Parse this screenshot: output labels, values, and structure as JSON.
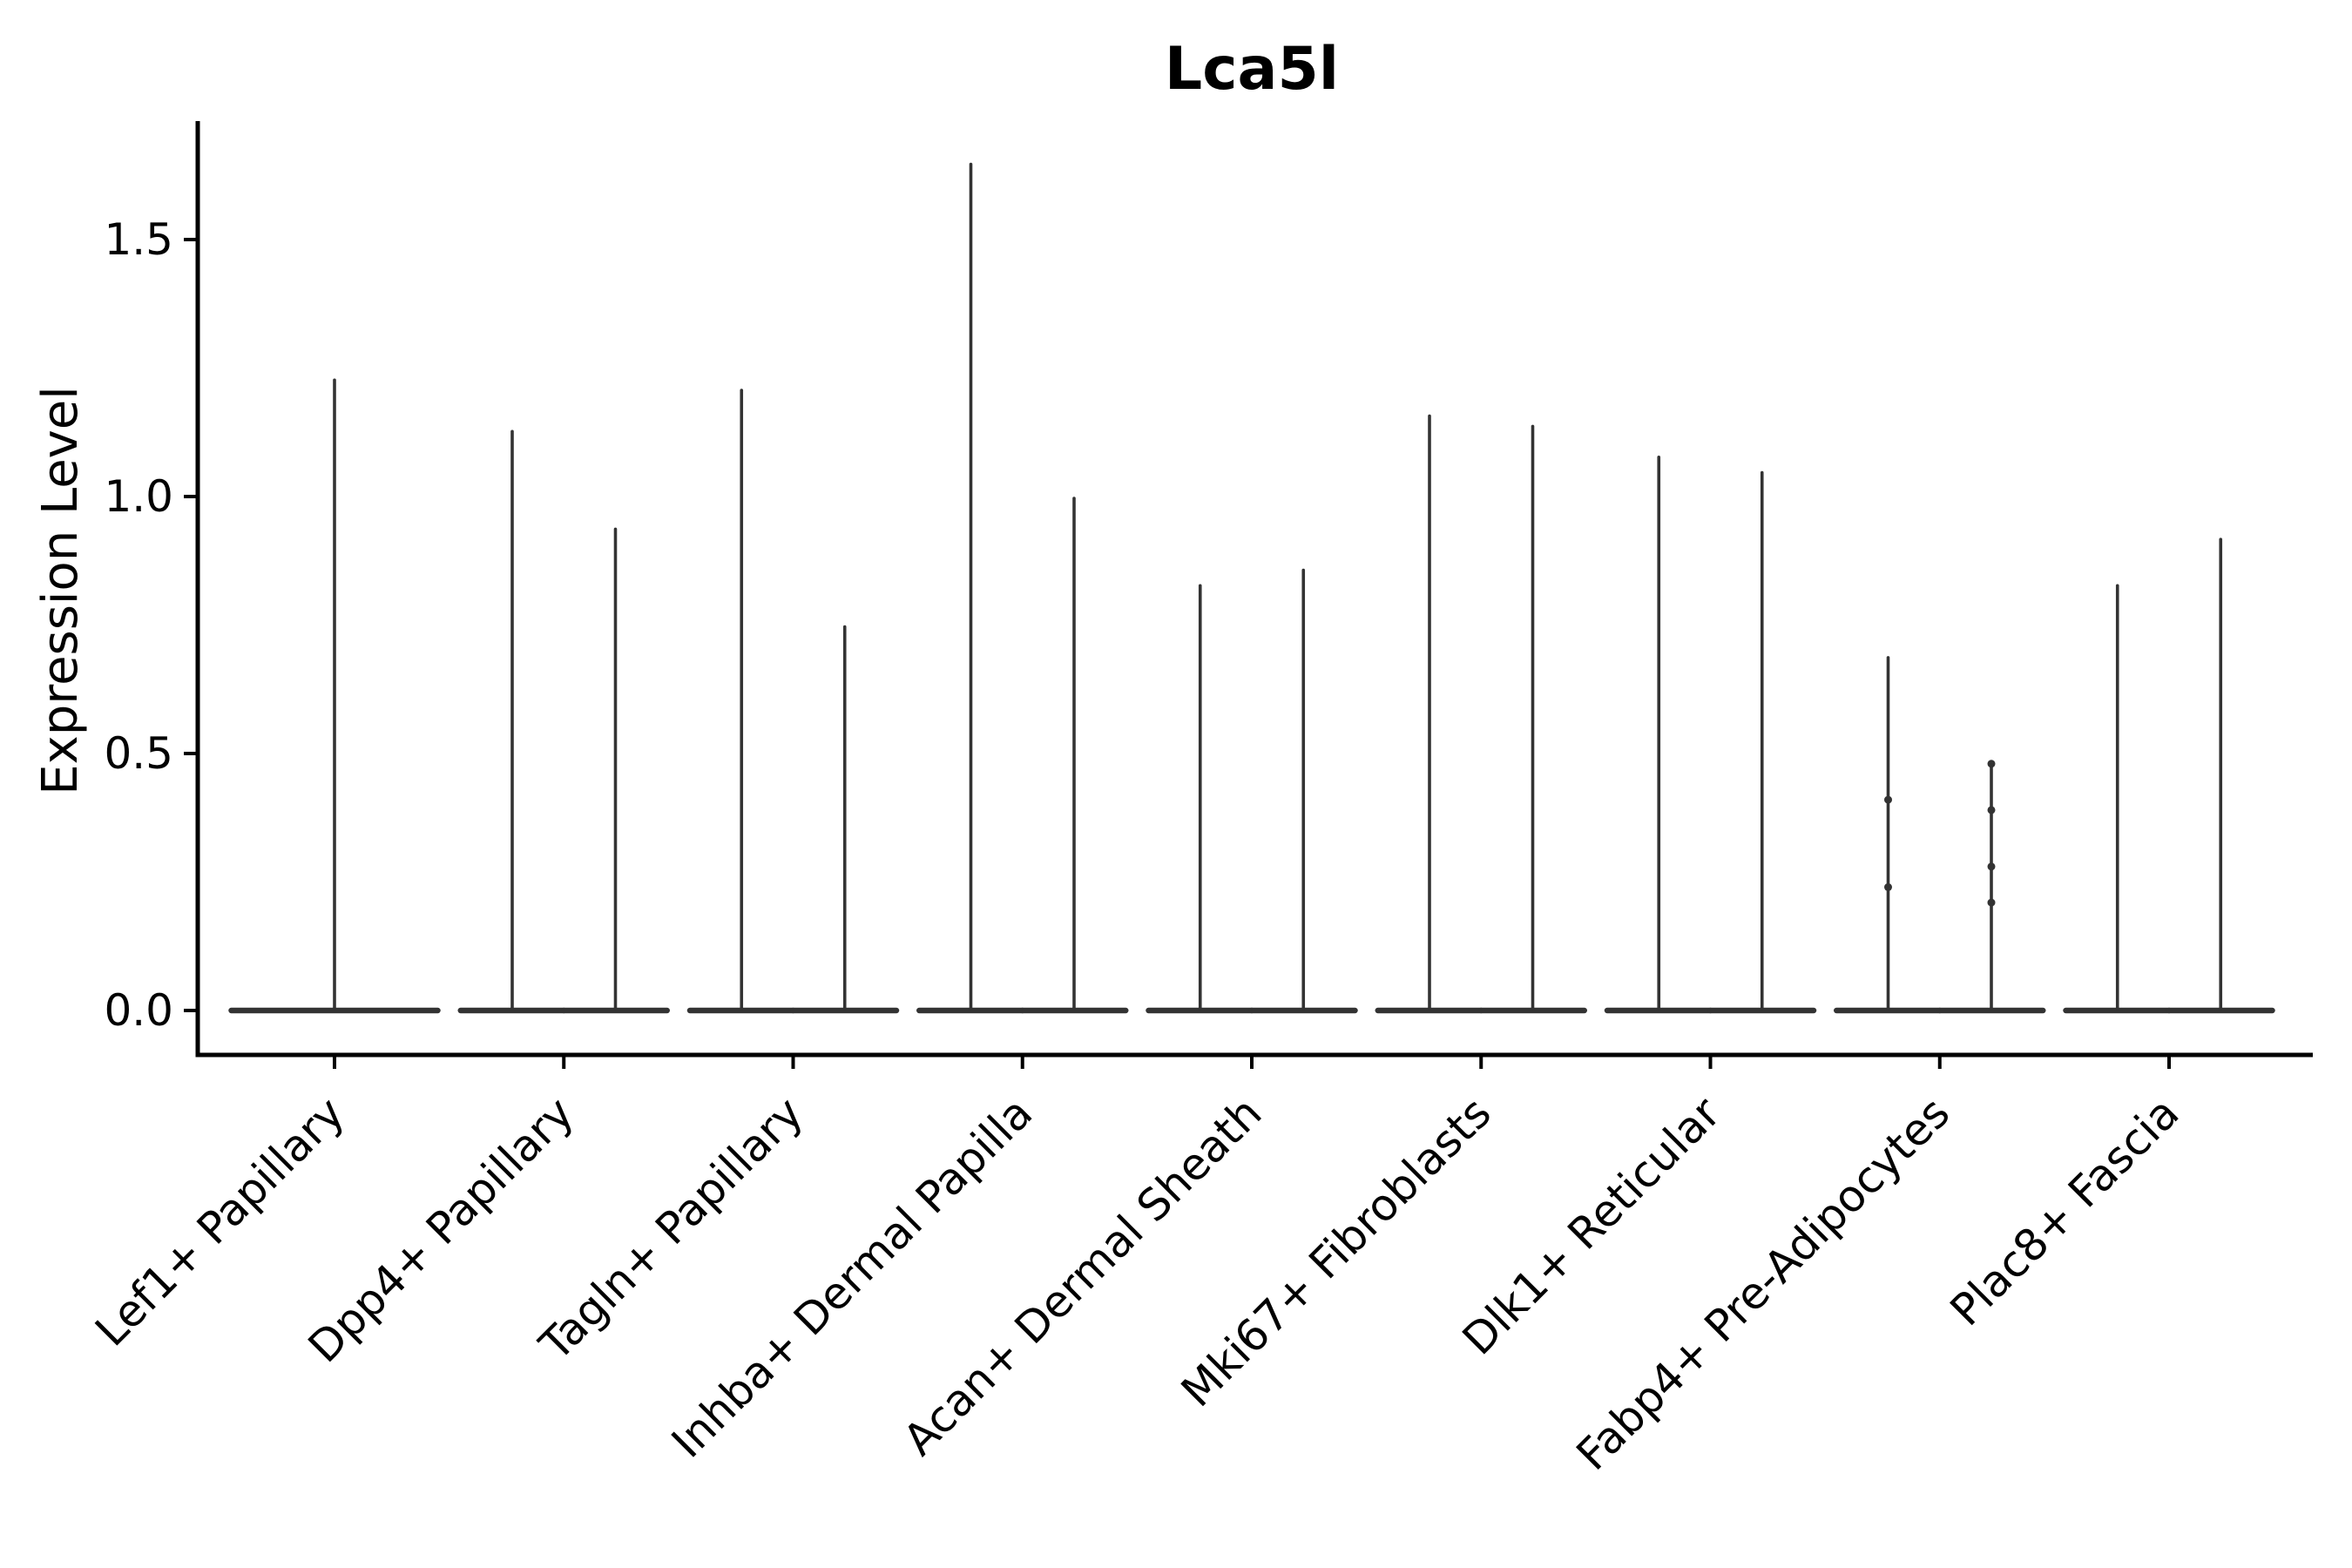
{
  "chart_data": {
    "type": "violin",
    "title": "Lca5l",
    "ylabel": "Expression Level",
    "xlabel": "",
    "grid": false,
    "legend": "none",
    "ylim": [
      -0.09,
      1.73
    ],
    "yticks": [
      {
        "label": "0.0",
        "value": 0.0
      },
      {
        "label": "0.5",
        "value": 0.5
      },
      {
        "label": "1.0",
        "value": 1.0
      },
      {
        "label": "1.5",
        "value": 1.5
      }
    ],
    "categories": [
      "Lef1+ Papillary",
      "Dpp4+ Papillary",
      "Tagln+ Papillary",
      "Inhba+ Dermal Papilla",
      "Acan+ Dermal Sheath",
      "Mki67+ Fibroblasts",
      "Dlk1+ Reticular",
      "Fabp4+ Pre-Adipocytes",
      "Plac8+ Fascia"
    ],
    "groups": [
      {
        "label": "Lef1+ Papillary",
        "violins": [
          {
            "max": 1.23,
            "points": []
          }
        ]
      },
      {
        "label": "Dpp4+ Papillary",
        "violins": [
          {
            "max": 1.13,
            "points": []
          },
          {
            "max": 0.94,
            "points": []
          }
        ]
      },
      {
        "label": "Tagln+ Papillary",
        "violins": [
          {
            "max": 1.21,
            "points": []
          },
          {
            "max": 0.75,
            "points": []
          }
        ]
      },
      {
        "label": "Inhba+ Dermal Papilla",
        "violins": [
          {
            "max": 1.65,
            "points": []
          },
          {
            "max": 1.0,
            "points": []
          }
        ]
      },
      {
        "label": "Acan+ Dermal Sheath",
        "violins": [
          {
            "max": 0.83,
            "points": []
          },
          {
            "max": 0.86,
            "points": []
          }
        ]
      },
      {
        "label": "Mki67+ Fibroblasts",
        "violins": [
          {
            "max": 1.16,
            "points": []
          },
          {
            "max": 1.14,
            "points": []
          }
        ]
      },
      {
        "label": "Dlk1+ Reticular",
        "violins": [
          {
            "max": 1.08,
            "points": []
          },
          {
            "max": 1.05,
            "points": []
          }
        ]
      },
      {
        "label": "Fabp4+ Pre-Adipocytes",
        "violins": [
          {
            "max": 0.69,
            "points": [
              0.41,
              0.24
            ]
          },
          {
            "max": 0.48,
            "points": [
              0.48,
              0.39,
              0.28,
              0.21
            ]
          }
        ]
      },
      {
        "label": "Plac8+ Fascia",
        "violins": [
          {
            "max": 0.83,
            "points": []
          },
          {
            "max": 0.92,
            "points": []
          }
        ]
      }
    ],
    "colors": {
      "violin_line": "#333333",
      "axis": "#000000",
      "text": "#000000",
      "background": "#ffffff"
    }
  }
}
